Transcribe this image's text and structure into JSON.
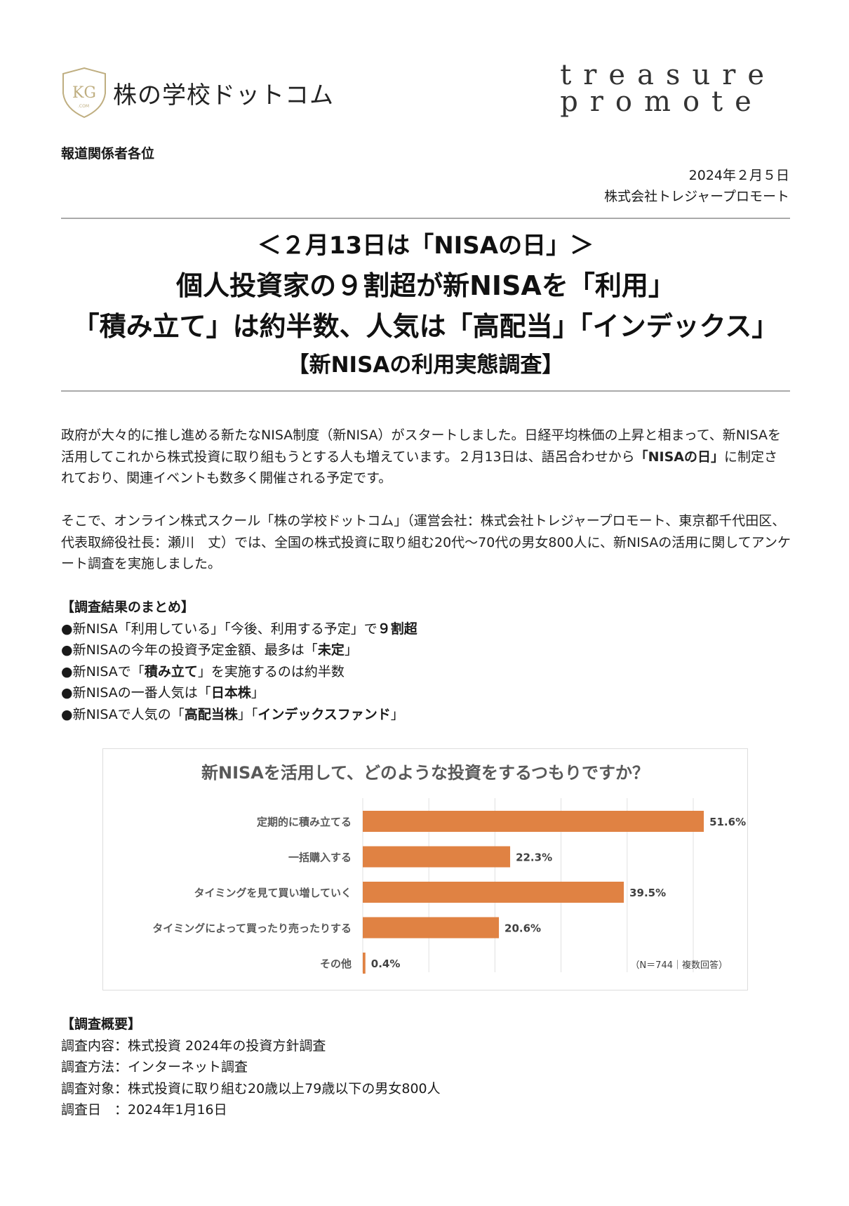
{
  "logos": {
    "left_name": "株の学校ドットコム",
    "left_emblem": "KG .COM",
    "right_line1": "treasure",
    "right_line2": "promote"
  },
  "addressee": "報道関係者各位",
  "date": "2024年２月５日",
  "company": "株式会社トレジャープロモート",
  "title": {
    "line1": "＜２月13日は「NISAの日」＞",
    "line2": "個人投資家の９割超が新NISAを「利用」",
    "line3": "「積み立て」は約半数、人気は「高配当」「インデックス」",
    "line4": "【新NISAの利用実態調査】"
  },
  "paragraphs": [
    "政府が大々的に推し進める新たなNISA制度（新NISA）がスタートしました。日経平均株価の上昇と相まって、新NISAを活用してこれから株式投資に取り組もうとする人も増えています。２月13日は、語呂合わせから",
    "「NISAの日」",
    "に制定されており、関連イベントも数多く開催される予定です。",
    "そこで、オンライン株式スクール「株の学校ドットコム」（運営会社：株式会社トレジャープロモート、東京都千代田区、代表取締役社長：瀬川　丈）では、全国の株式投資に取り組む20代～70代の男女800人に、新NISAの活用に関してアンケート調査を実施しました。"
  ],
  "summary": {
    "heading": "【調査結果のまとめ】",
    "items": [
      {
        "pre": "●新NISA「利用している」「今後、利用する予定」で",
        "bold": "９割超",
        "post": ""
      },
      {
        "pre": "●新NISAの今年の投資予定金額、最多は「",
        "bold": "未定",
        "post": "」"
      },
      {
        "pre": "●新NISAで「",
        "bold": "積み立て",
        "post": "」を実施するのは約半数"
      },
      {
        "pre": "●新NISAの一番人気は「",
        "bold": "日本株",
        "post": "」"
      },
      {
        "pre": "●新NISAで人気の「",
        "bold": "高配当株",
        "post": "」「",
        "bold2": "インデックスファンド",
        "post2": "」"
      }
    ]
  },
  "chart_data": {
    "type": "bar",
    "orientation": "horizontal",
    "title": "新NISAを活用して、どのような投資をするつもりですか？",
    "categories": [
      "定期的に積み立てる",
      "一括購入する",
      "タイミングを見て買い増していく",
      "タイミングによって買ったり売ったりする",
      "その他"
    ],
    "values": [
      51.6,
      22.3,
      39.5,
      20.6,
      0.4
    ],
    "labels": [
      "51.6%",
      "22.3%",
      "39.5%",
      "20.6%",
      "0.4%"
    ],
    "xlim": [
      0,
      50
    ],
    "grid": true,
    "note": "（N＝744｜複数回答）",
    "color": "#E08243"
  },
  "survey": {
    "heading": "【調査概要】",
    "rows": [
      "調査内容：株式投資 2024年の投資方針調査",
      "調査方法：インターネット調査",
      "調査対象：株式投資に取り組む20歳以上79歳以下の男女800人",
      "調査日　：2024年1月16日"
    ]
  }
}
